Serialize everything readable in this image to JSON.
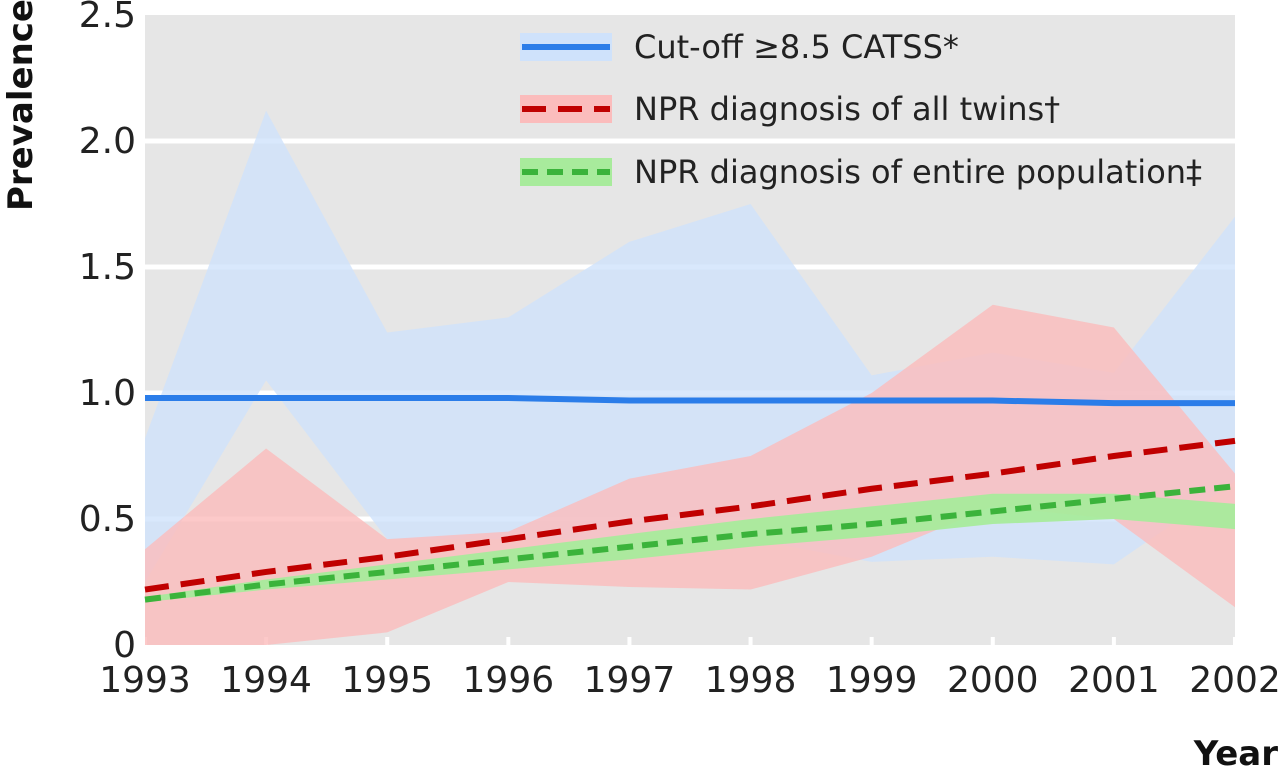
{
  "chart_data": {
    "type": "line",
    "title": "",
    "xlabel": "Year",
    "ylabel": "Prevalence",
    "categories": [
      "1993",
      "1994",
      "1995",
      "1996",
      "1997",
      "1998",
      "1999",
      "2000",
      "2001",
      "2002"
    ],
    "y_ticks": [
      "0",
      "0.5",
      "1.0",
      "1.5",
      "2.0",
      "2.5"
    ],
    "ylim": [
      0,
      2.5
    ],
    "grid": "horizontal",
    "legend_position": "top-right",
    "series": [
      {
        "name": "Cut-off ≥8.5 CATSS*",
        "style": "solid",
        "color": "#2b7de9",
        "band_color": "#cfe2fb",
        "values": [
          0.98,
          0.98,
          0.98,
          0.98,
          0.97,
          0.97,
          0.97,
          0.97,
          0.96,
          0.96
        ],
        "ci_lower": [
          0.25,
          1.05,
          0.42,
          0.42,
          0.42,
          0.42,
          0.33,
          0.35,
          0.32,
          0.65
        ],
        "ci_upper": [
          0.82,
          2.12,
          1.24,
          1.3,
          1.6,
          1.75,
          1.07,
          1.16,
          1.08,
          1.7
        ]
      },
      {
        "name": "NPR diagnosis of all twins†",
        "style": "dashed",
        "color": "#c00000",
        "band_color": "#fbbcbc",
        "values": [
          0.22,
          0.29,
          0.35,
          0.42,
          0.49,
          0.55,
          0.62,
          0.68,
          0.75,
          0.81
        ],
        "ci_lower": [
          0.0,
          0.0,
          0.05,
          0.25,
          0.23,
          0.22,
          0.35,
          0.55,
          0.5,
          0.15
        ],
        "ci_upper": [
          0.38,
          0.78,
          0.42,
          0.45,
          0.66,
          0.75,
          1.0,
          1.35,
          1.26,
          0.68
        ]
      },
      {
        "name": "NPR diagnosis of entire population‡",
        "style": "dotted",
        "color": "#3bb33b",
        "band_color": "#a8eb9c",
        "values": [
          0.18,
          0.24,
          0.29,
          0.34,
          0.39,
          0.44,
          0.48,
          0.53,
          0.58,
          0.63
        ],
        "ci_lower": [
          0.17,
          0.22,
          0.26,
          0.3,
          0.34,
          0.39,
          0.43,
          0.48,
          0.5,
          0.46
        ],
        "ci_upper": [
          0.19,
          0.26,
          0.32,
          0.38,
          0.44,
          0.5,
          0.55,
          0.6,
          0.6,
          0.56
        ]
      }
    ]
  }
}
